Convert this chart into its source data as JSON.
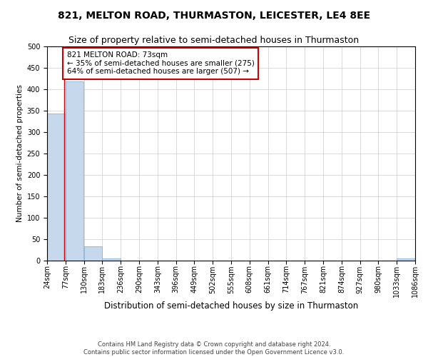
{
  "title": "821, MELTON ROAD, THURMASTON, LEICESTER, LE4 8EE",
  "subtitle": "Size of property relative to semi-detached houses in Thurmaston",
  "xlabel": "Distribution of semi-detached houses by size in Thurmaston",
  "ylabel": "Number of semi-detached properties",
  "footnote": "Contains HM Land Registry data © Crown copyright and database right 2024.\nContains public sector information licensed under the Open Government Licence v3.0.",
  "bin_edges": [
    24,
    77,
    130,
    183,
    236,
    290,
    343,
    396,
    449,
    502,
    555,
    608,
    661,
    714,
    767,
    821,
    874,
    927,
    980,
    1033,
    1086
  ],
  "bar_heights": [
    343,
    419,
    33,
    5,
    0,
    0,
    0,
    0,
    0,
    0,
    0,
    0,
    0,
    0,
    0,
    0,
    0,
    0,
    0,
    5
  ],
  "bar_color": "#c6d9ec",
  "bar_edgecolor": "#7aabcf",
  "subject_size": 73,
  "annotation_text": "821 MELTON ROAD: 73sqm\n← 35% of semi-detached houses are smaller (275)\n64% of semi-detached houses are larger (507) →",
  "annotation_box_color": "#ffffff",
  "annotation_box_edgecolor": "#cc0000",
  "red_line_color": "#cc0000",
  "ylim": [
    0,
    500
  ],
  "yticks": [
    0,
    50,
    100,
    150,
    200,
    250,
    300,
    350,
    400,
    450,
    500
  ],
  "background_color": "#ffffff",
  "grid_color": "#cccccc",
  "title_fontsize": 10,
  "subtitle_fontsize": 9,
  "xlabel_fontsize": 8.5,
  "ylabel_fontsize": 7.5,
  "tick_fontsize": 7,
  "annotation_fontsize": 7.5,
  "footnote_fontsize": 6
}
